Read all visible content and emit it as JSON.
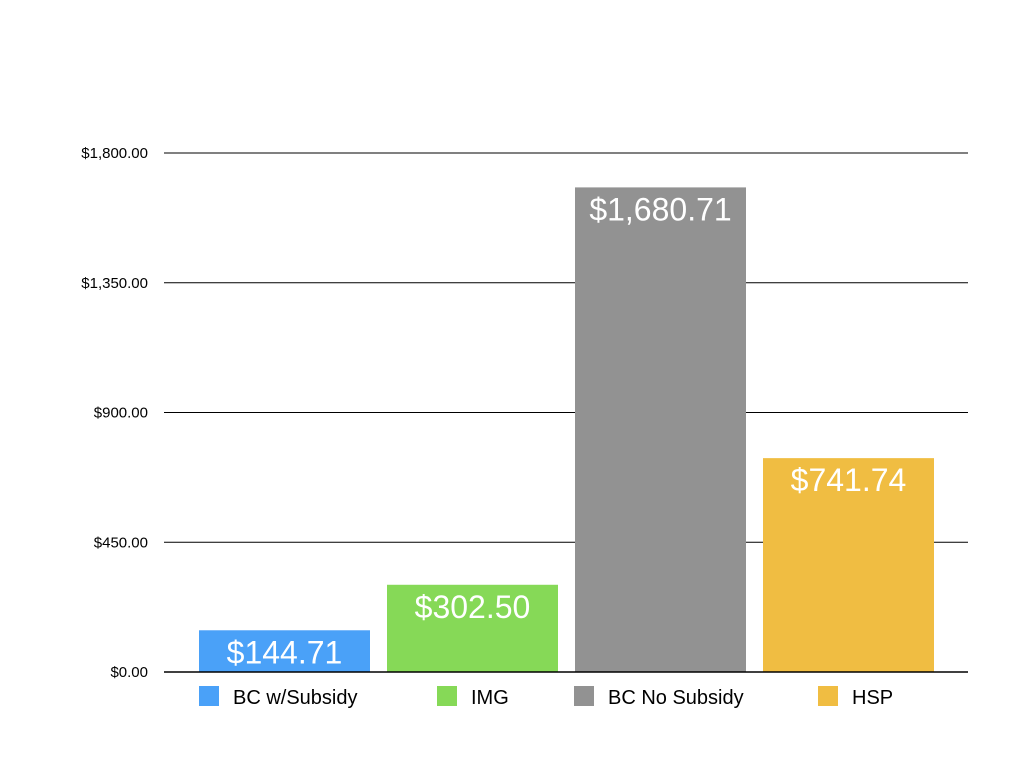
{
  "chart_data": {
    "type": "bar",
    "title": "",
    "xlabel": "",
    "ylabel": "",
    "categories": [
      "BC w/Subsidy",
      "IMG",
      "BC No Subsidy",
      "HSP"
    ],
    "values": [
      144.71,
      302.5,
      1680.71,
      741.74
    ],
    "data_labels": [
      "$144.71",
      "$302.50",
      "$1,680.71",
      "$741.74"
    ],
    "colors": [
      "#4aa1f8",
      "#86d957",
      "#929292",
      "#f0bd42"
    ],
    "ylim": [
      0,
      1800
    ],
    "yticks": [
      0,
      450,
      900,
      1350,
      1800
    ],
    "ytick_labels": [
      "$0.00",
      "$450.00",
      "$900.00",
      "$1,350.00",
      "$1,800.00"
    ],
    "grid": true,
    "legend": {
      "placement": "bottom",
      "entries": [
        "BC w/Subsidy",
        "IMG",
        "BC No Subsidy",
        "HSP"
      ]
    }
  }
}
